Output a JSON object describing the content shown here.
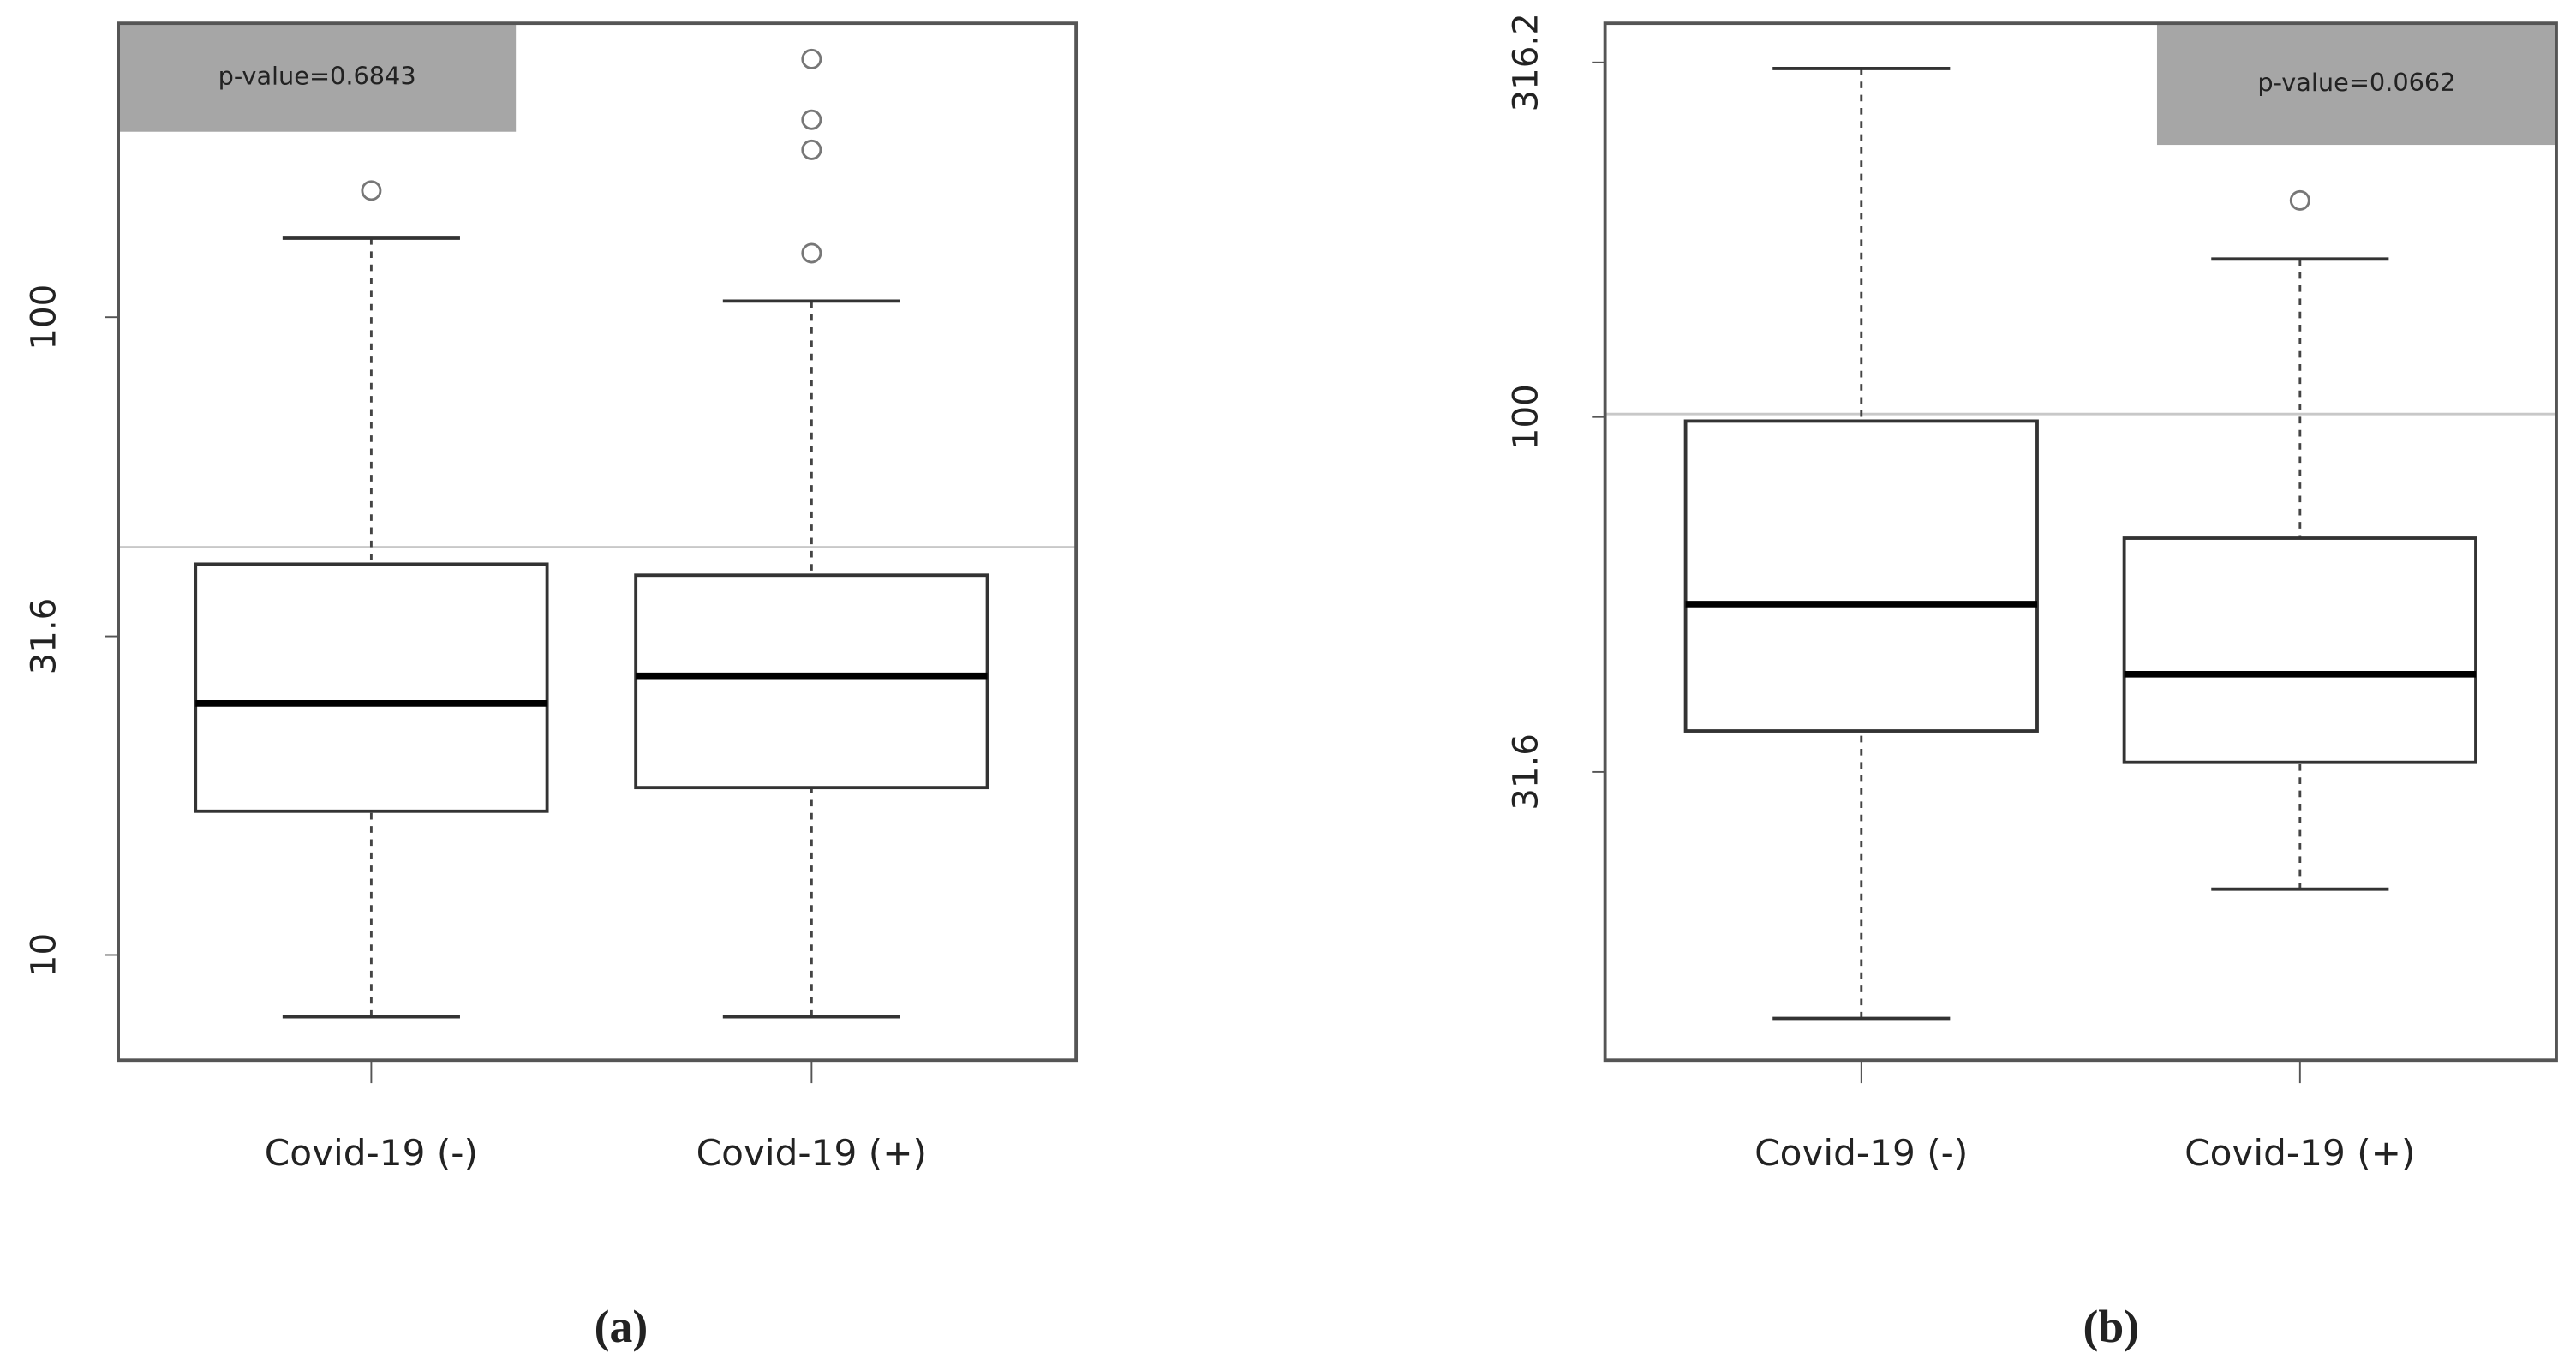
{
  "chart_data": [
    {
      "type": "box",
      "caption": "(a)",
      "annotation": "p-value=0.6843",
      "log_scale": true,
      "categories": [
        "Covid-19 (-)",
        "Covid-19 (+)"
      ],
      "boxes": [
        {
          "whisker_low": 8,
          "q1": 16.8,
          "median": 24.8,
          "q3": 41,
          "whisker_high": 133,
          "outliers": [
            158
          ]
        },
        {
          "whisker_low": 8,
          "q1": 18.3,
          "median": 27.4,
          "q3": 39.4,
          "whisker_high": 106,
          "outliers": [
            126,
            183,
            204,
            254
          ]
        }
      ],
      "reference_line": 43.6,
      "ylim": [
        6.84,
        289
      ],
      "yticks": [
        10,
        31.6,
        100
      ]
    },
    {
      "type": "box",
      "caption": "(b)",
      "annotation": "p-value=0.0662",
      "log_scale": true,
      "categories": [
        "Covid-19 (-)",
        "Covid-19 (+)"
      ],
      "boxes": [
        {
          "whisker_low": 14.2,
          "q1": 36.1,
          "median": 54.5,
          "q3": 98.7,
          "whisker_high": 310,
          "outliers": []
        },
        {
          "whisker_low": 21.6,
          "q1": 32.6,
          "median": 43.4,
          "q3": 67.5,
          "whisker_high": 167,
          "outliers": [
            202
          ]
        }
      ],
      "reference_line": 101,
      "ylim": [
        12.4,
        359
      ],
      "yticks": [
        31.6,
        100,
        316.2
      ]
    }
  ]
}
